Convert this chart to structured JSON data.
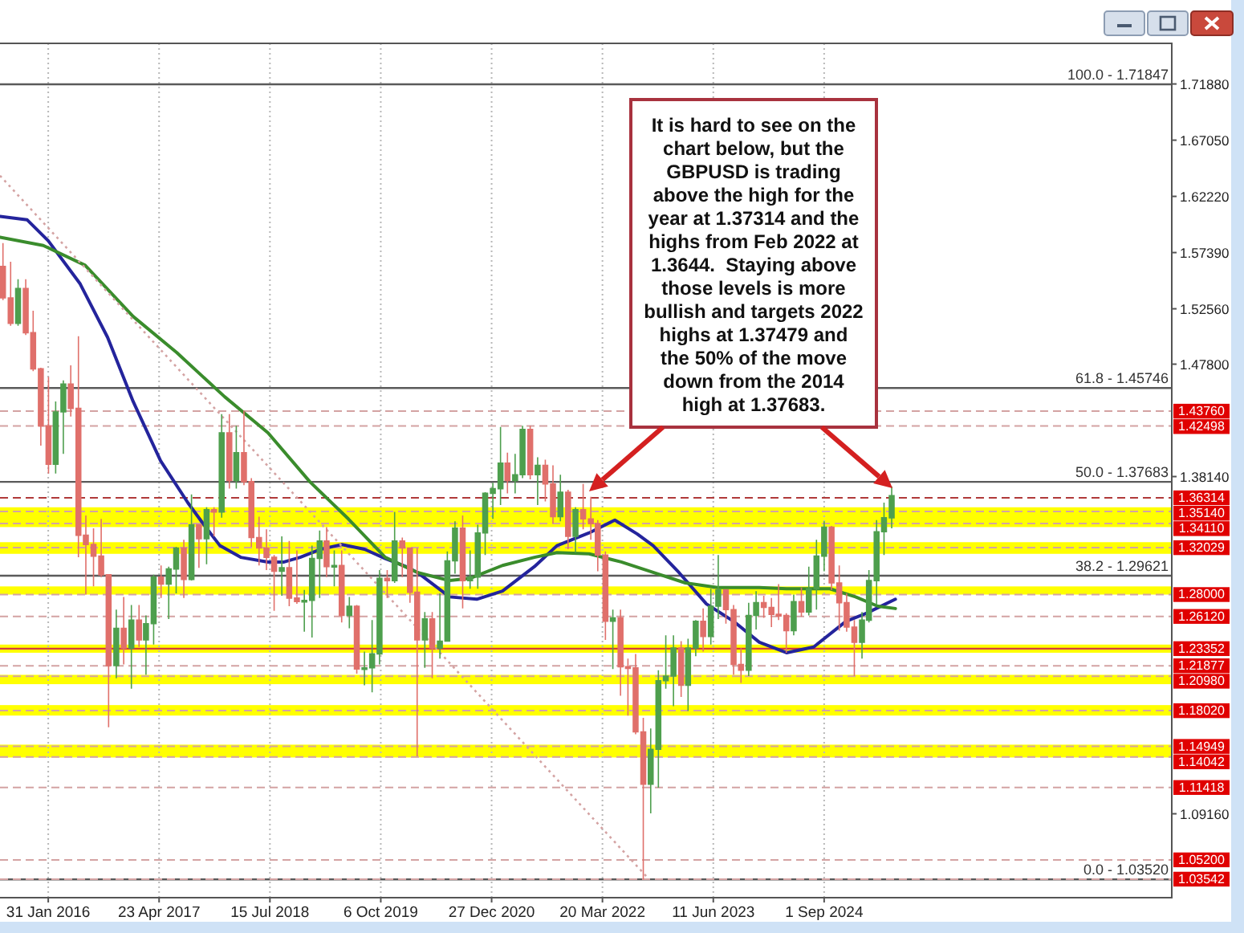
{
  "chart_data": {
    "type": "candlestick",
    "x": [
      "2015-08",
      "2015-09",
      "2015-10",
      "2015-11",
      "2015-12",
      "2016-01",
      "2016-02",
      "2016-03",
      "2016-04",
      "2016-05",
      "2016-06",
      "2016-07",
      "2016-08",
      "2016-09",
      "2016-10",
      "2016-11",
      "2016-12",
      "2017-01",
      "2017-02",
      "2017-03",
      "2017-04",
      "2017-05",
      "2017-06",
      "2017-07",
      "2017-08",
      "2017-09",
      "2017-10",
      "2017-11",
      "2017-12",
      "2018-01",
      "2018-02",
      "2018-03",
      "2018-04",
      "2018-05",
      "2018-06",
      "2018-07",
      "2018-08",
      "2018-09",
      "2018-10",
      "2018-11",
      "2018-12",
      "2019-01",
      "2019-02",
      "2019-03",
      "2019-04",
      "2019-05",
      "2019-06",
      "2019-07",
      "2019-08",
      "2019-09",
      "2019-10",
      "2019-11",
      "2019-12",
      "2020-01",
      "2020-02",
      "2020-03",
      "2020-04",
      "2020-05",
      "2020-06",
      "2020-07",
      "2020-08",
      "2020-09",
      "2020-10",
      "2020-11",
      "2020-12",
      "2021-01",
      "2021-02",
      "2021-03",
      "2021-04",
      "2021-05",
      "2021-06",
      "2021-07",
      "2021-08",
      "2021-09",
      "2021-10",
      "2021-11",
      "2021-12",
      "2022-01",
      "2022-02",
      "2022-03",
      "2022-04",
      "2022-05",
      "2022-06",
      "2022-07",
      "2022-08",
      "2022-09",
      "2022-10",
      "2022-11",
      "2022-12",
      "2023-01",
      "2023-02",
      "2023-03",
      "2023-04",
      "2023-05",
      "2023-06",
      "2023-07",
      "2023-08",
      "2023-09",
      "2023-10",
      "2023-11",
      "2023-12",
      "2024-01",
      "2024-02",
      "2024-03",
      "2024-04",
      "2024-05",
      "2024-06",
      "2024-07",
      "2024-08",
      "2024-09",
      "2024-10",
      "2024-11",
      "2024-12",
      "2025-01",
      "2025-02",
      "2025-03",
      "2025-04",
      "2025-05",
      "2025-06"
    ],
    "ohlc": [
      [
        1.562,
        1.582,
        1.533,
        1.535
      ],
      [
        1.535,
        1.566,
        1.511,
        1.513
      ],
      [
        1.513,
        1.551,
        1.511,
        1.543
      ],
      [
        1.543,
        1.551,
        1.503,
        1.505
      ],
      [
        1.505,
        1.524,
        1.472,
        1.474
      ],
      [
        1.474,
        1.475,
        1.408,
        1.425
      ],
      [
        1.425,
        1.467,
        1.384,
        1.392
      ],
      [
        1.392,
        1.446,
        1.384,
        1.437
      ],
      [
        1.437,
        1.464,
        1.401,
        1.461
      ],
      [
        1.461,
        1.477,
        1.433,
        1.44
      ],
      [
        1.44,
        1.502,
        1.312,
        1.331
      ],
      [
        1.331,
        1.348,
        1.28,
        1.323
      ],
      [
        1.323,
        1.337,
        1.287,
        1.313
      ],
      [
        1.313,
        1.345,
        1.295,
        1.297
      ],
      [
        1.297,
        1.297,
        1.166,
        1.219
      ],
      [
        1.219,
        1.267,
        1.208,
        1.251
      ],
      [
        1.251,
        1.278,
        1.22,
        1.234
      ],
      [
        1.234,
        1.271,
        1.199,
        1.258
      ],
      [
        1.258,
        1.271,
        1.235,
        1.241
      ],
      [
        1.241,
        1.262,
        1.211,
        1.255
      ],
      [
        1.255,
        1.297,
        1.237,
        1.295
      ],
      [
        1.295,
        1.305,
        1.277,
        1.289
      ],
      [
        1.289,
        1.304,
        1.259,
        1.302
      ],
      [
        1.302,
        1.321,
        1.281,
        1.32
      ],
      [
        1.32,
        1.327,
        1.277,
        1.293
      ],
      [
        1.293,
        1.366,
        1.292,
        1.34
      ],
      [
        1.34,
        1.34,
        1.303,
        1.328
      ],
      [
        1.328,
        1.355,
        1.306,
        1.353
      ],
      [
        1.353,
        1.355,
        1.33,
        1.351
      ],
      [
        1.351,
        1.435,
        1.346,
        1.419
      ],
      [
        1.419,
        1.435,
        1.371,
        1.378
      ],
      [
        1.378,
        1.425,
        1.371,
        1.402
      ],
      [
        1.402,
        1.438,
        1.374,
        1.377
      ],
      [
        1.377,
        1.38,
        1.321,
        1.329
      ],
      [
        1.329,
        1.347,
        1.305,
        1.32
      ],
      [
        1.32,
        1.336,
        1.301,
        1.312
      ],
      [
        1.312,
        1.314,
        1.266,
        1.3
      ],
      [
        1.3,
        1.33,
        1.279,
        1.303
      ],
      [
        1.303,
        1.326,
        1.27,
        1.277
      ],
      [
        1.277,
        1.318,
        1.272,
        1.274
      ],
      [
        1.274,
        1.284,
        1.248,
        1.275
      ],
      [
        1.275,
        1.322,
        1.243,
        1.311
      ],
      [
        1.311,
        1.335,
        1.277,
        1.326
      ],
      [
        1.326,
        1.338,
        1.295,
        1.304
      ],
      [
        1.304,
        1.318,
        1.287,
        1.305
      ],
      [
        1.305,
        1.318,
        1.256,
        1.262
      ],
      [
        1.262,
        1.278,
        1.251,
        1.27
      ],
      [
        1.27,
        1.271,
        1.212,
        1.216
      ],
      [
        1.216,
        1.231,
        1.202,
        1.217
      ],
      [
        1.217,
        1.258,
        1.196,
        1.229
      ],
      [
        1.229,
        1.301,
        1.22,
        1.294
      ],
      [
        1.294,
        1.301,
        1.277,
        1.292
      ],
      [
        1.292,
        1.351,
        1.29,
        1.326
      ],
      [
        1.326,
        1.329,
        1.295,
        1.32
      ],
      [
        1.32,
        1.32,
        1.273,
        1.282
      ],
      [
        1.282,
        1.32,
        1.141,
        1.241
      ],
      [
        1.241,
        1.265,
        1.217,
        1.259
      ],
      [
        1.259,
        1.265,
        1.208,
        1.234
      ],
      [
        1.234,
        1.281,
        1.225,
        1.24
      ],
      [
        1.24,
        1.317,
        1.24,
        1.309
      ],
      [
        1.309,
        1.343,
        1.298,
        1.337
      ],
      [
        1.337,
        1.348,
        1.268,
        1.292
      ],
      [
        1.292,
        1.318,
        1.285,
        1.295
      ],
      [
        1.295,
        1.34,
        1.285,
        1.333
      ],
      [
        1.333,
        1.368,
        1.314,
        1.367
      ],
      [
        1.367,
        1.376,
        1.345,
        1.371
      ],
      [
        1.371,
        1.424,
        1.357,
        1.393
      ],
      [
        1.393,
        1.402,
        1.367,
        1.378
      ],
      [
        1.378,
        1.401,
        1.367,
        1.383
      ],
      [
        1.383,
        1.425,
        1.38,
        1.422
      ],
      [
        1.422,
        1.425,
        1.379,
        1.383
      ],
      [
        1.383,
        1.398,
        1.357,
        1.391
      ],
      [
        1.391,
        1.396,
        1.36,
        1.375
      ],
      [
        1.375,
        1.391,
        1.341,
        1.347
      ],
      [
        1.347,
        1.383,
        1.343,
        1.368
      ],
      [
        1.368,
        1.37,
        1.319,
        1.33
      ],
      [
        1.33,
        1.355,
        1.316,
        1.353
      ],
      [
        1.353,
        1.375,
        1.336,
        1.345
      ],
      [
        1.345,
        1.364,
        1.327,
        1.341
      ],
      [
        1.341,
        1.344,
        1.3,
        1.314
      ],
      [
        1.314,
        1.317,
        1.241,
        1.257
      ],
      [
        1.257,
        1.267,
        1.216,
        1.26
      ],
      [
        1.26,
        1.267,
        1.193,
        1.218
      ],
      [
        1.218,
        1.225,
        1.176,
        1.217
      ],
      [
        1.217,
        1.229,
        1.16,
        1.162
      ],
      [
        1.162,
        1.174,
        1.035,
        1.117
      ],
      [
        1.117,
        1.165,
        1.092,
        1.147
      ],
      [
        1.147,
        1.215,
        1.114,
        1.206
      ],
      [
        1.206,
        1.245,
        1.199,
        1.21
      ],
      [
        1.21,
        1.245,
        1.184,
        1.234
      ],
      [
        1.234,
        1.24,
        1.192,
        1.202
      ],
      [
        1.202,
        1.242,
        1.18,
        1.234
      ],
      [
        1.234,
        1.258,
        1.227,
        1.257
      ],
      [
        1.257,
        1.268,
        1.231,
        1.244
      ],
      [
        1.244,
        1.285,
        1.237,
        1.27
      ],
      [
        1.27,
        1.314,
        1.259,
        1.284
      ],
      [
        1.284,
        1.284,
        1.255,
        1.267
      ],
      [
        1.267,
        1.271,
        1.211,
        1.22
      ],
      [
        1.22,
        1.234,
        1.204,
        1.215
      ],
      [
        1.215,
        1.273,
        1.21,
        1.262
      ],
      [
        1.262,
        1.283,
        1.25,
        1.273
      ],
      [
        1.273,
        1.279,
        1.26,
        1.269
      ],
      [
        1.269,
        1.277,
        1.252,
        1.263
      ],
      [
        1.263,
        1.289,
        1.258,
        1.262
      ],
      [
        1.262,
        1.264,
        1.23,
        1.249
      ],
      [
        1.249,
        1.28,
        1.245,
        1.274
      ],
      [
        1.274,
        1.286,
        1.261,
        1.265
      ],
      [
        1.265,
        1.304,
        1.262,
        1.285
      ],
      [
        1.285,
        1.327,
        1.267,
        1.313
      ],
      [
        1.313,
        1.343,
        1.3,
        1.338
      ],
      [
        1.338,
        1.339,
        1.284,
        1.29
      ],
      [
        1.29,
        1.305,
        1.249,
        1.273
      ],
      [
        1.273,
        1.281,
        1.248,
        1.252
      ],
      [
        1.252,
        1.258,
        1.21,
        1.239
      ],
      [
        1.239,
        1.265,
        1.225,
        1.258
      ],
      [
        1.258,
        1.301,
        1.256,
        1.292
      ],
      [
        1.292,
        1.344,
        1.271,
        1.334
      ],
      [
        1.334,
        1.359,
        1.314,
        1.346
      ],
      [
        1.346,
        1.373,
        1.337,
        1.365
      ]
    ],
    "colors": [
      "#e0706b",
      "#e0706b",
      "#4e9f4e",
      "#e0706b",
      "#e0706b",
      "#e0706b",
      "#e0706b",
      "#4e9f4e",
      "#4e9f4e",
      "#e0706b",
      "#e0706b",
      "#e0706b",
      "#e0706b",
      "#e0706b",
      "#e0706b",
      "#4e9f4e",
      "#e0706b",
      "#4e9f4e",
      "#e0706b",
      "#4e9f4e",
      "#4e9f4e",
      "#e0706b",
      "#4e9f4e",
      "#4e9f4e",
      "#e0706b",
      "#4e9f4e",
      "#e0706b",
      "#4e9f4e",
      "#e0706b",
      "#4e9f4e",
      "#e0706b",
      "#4e9f4e",
      "#e0706b",
      "#e0706b",
      "#e0706b",
      "#e0706b",
      "#e0706b",
      "#4e9f4e",
      "#e0706b",
      "#e0706b",
      "#4e9f4e",
      "#4e9f4e",
      "#4e9f4e",
      "#e0706b",
      "#4e9f4e",
      "#e0706b",
      "#4e9f4e",
      "#e0706b",
      "#4e9f4e",
      "#4e9f4e",
      "#4e9f4e",
      "#e0706b",
      "#4e9f4e",
      "#e0706b",
      "#e0706b",
      "#e0706b",
      "#4e9f4e",
      "#e0706b",
      "#4e9f4e",
      "#4e9f4e",
      "#4e9f4e",
      "#e0706b",
      "#4e9f4e",
      "#4e9f4e",
      "#4e9f4e",
      "#4e9f4e",
      "#4e9f4e",
      "#e0706b",
      "#4e9f4e",
      "#4e9f4e",
      "#e0706b",
      "#4e9f4e",
      "#e0706b",
      "#e0706b",
      "#4e9f4e",
      "#e0706b",
      "#4e9f4e",
      "#e0706b",
      "#e0706b",
      "#e0706b",
      "#e0706b",
      "#4e9f4e",
      "#e0706b",
      "#e0706b",
      "#e0706b",
      "#e0706b",
      "#4e9f4e",
      "#4e9f4e",
      "#4e9f4e",
      "#4e9f4e",
      "#e0706b",
      "#4e9f4e",
      "#4e9f4e",
      "#e0706b",
      "#4e9f4e",
      "#4e9f4e",
      "#e0706b",
      "#e0706b",
      "#e0706b",
      "#4e9f4e",
      "#4e9f4e",
      "#e0706b",
      "#e0706b",
      "#e0706b",
      "#e0706b",
      "#4e9f4e",
      "#e0706b",
      "#4e9f4e",
      "#4e9f4e",
      "#4e9f4e",
      "#e0706b",
      "#e0706b",
      "#e0706b",
      "#e0706b",
      "#4e9f4e",
      "#4e9f4e",
      "#4e9f4e",
      "#4e9f4e",
      "#4e9f4e"
    ],
    "series": [
      {
        "type": "line",
        "color": "#24249c",
        "x": [
          "2015-07-20",
          "2015-11-07",
          "2016-01-31",
          "2016-06-08",
          "2016-09-27",
          "2017-01-08",
          "2017-04-29",
          "2017-08-17",
          "2017-10-21",
          "2017-12-25",
          "2018-03-19",
          "2018-07-07",
          "2018-09-10",
          "2018-11-14",
          "2019-02-07",
          "2019-05-02",
          "2019-08-01",
          "2019-10-24",
          "2020-01-16",
          "2020-03-02",
          "2020-07-10",
          "2020-10-28",
          "2021-02-09",
          "2021-06-18",
          "2021-09-17",
          "2022-01-25",
          "2022-05-09",
          "2022-08-08",
          "2022-10-11",
          "2023-01-23",
          "2023-05-14",
          "2023-09-01",
          "2023-12-14",
          "2024-04-02",
          "2024-07-21",
          "2024-11-28",
          "2025-02-20",
          "2025-06-16"
        ],
        "values": [
          1.605,
          1.602,
          1.584,
          1.547,
          1.501,
          1.446,
          1.395,
          1.359,
          1.34,
          1.322,
          1.312,
          1.308,
          1.308,
          1.312,
          1.319,
          1.323,
          1.319,
          1.311,
          1.304,
          1.299,
          1.278,
          1.276,
          1.283,
          1.304,
          1.322,
          1.333,
          1.344,
          1.332,
          1.322,
          1.299,
          1.272,
          1.257,
          1.239,
          1.23,
          1.235,
          1.257,
          1.264,
          1.276
        ]
      },
      {
        "type": "line",
        "color": "#3a8c2c",
        "x": [
          "2015-07-20",
          "2016-01-11",
          "2016-06-28",
          "2017-01-08",
          "2017-07-03",
          "2018-01-13",
          "2018-07-07",
          "2018-12-23",
          "2019-05-28",
          "2019-10-24",
          "2020-03-02",
          "2020-07-10",
          "2020-10-02",
          "2021-02-09",
          "2021-06-18",
          "2021-09-17",
          "2022-01-25",
          "2022-06-04",
          "2022-10-11",
          "2023-02-18",
          "2023-06-28",
          "2023-12-14",
          "2024-04-02",
          "2024-09-24",
          "2025-01-06",
          "2025-04-06",
          "2025-06-16"
        ],
        "values": [
          1.587,
          1.58,
          1.563,
          1.519,
          1.488,
          1.45,
          1.419,
          1.377,
          1.345,
          1.312,
          1.299,
          1.292,
          1.294,
          1.305,
          1.312,
          1.316,
          1.315,
          1.308,
          1.299,
          1.29,
          1.286,
          1.286,
          1.285,
          1.285,
          1.278,
          1.27,
          1.268
        ]
      },
      {
        "type": "line",
        "color": "#d4a3a3",
        "line_style": "dotted",
        "x": [
          "2015-07-20",
          "2022-09-26"
        ],
        "values": [
          1.64,
          1.035
        ]
      }
    ],
    "ref_lines": [
      {
        "axis": "y",
        "value": 1.71847,
        "label": null,
        "color": "#5a5a5a",
        "line_style": "solid"
      },
      {
        "axis": "y",
        "value": 1.45746,
        "label": null,
        "color": "#5a5a5a",
        "line_style": "solid"
      },
      {
        "axis": "y",
        "value": 1.37683,
        "label": null,
        "color": "#5a5a5a",
        "line_style": "solid"
      },
      {
        "axis": "y",
        "value": 1.29621,
        "label": null,
        "color": "#5a5a5a",
        "line_style": "solid"
      },
      {
        "axis": "y",
        "value": 1.0352,
        "label": null,
        "color": "#5a5a5a",
        "line_style": "solid"
      },
      {
        "axis": "y",
        "value": 1.4376,
        "label": "1.43760",
        "color": "#d4a3a3",
        "line_style": "dashed"
      },
      {
        "axis": "y",
        "value": 1.42498,
        "label": "1.42498",
        "color": "#d4a3a3",
        "line_style": "dashed"
      },
      {
        "axis": "y",
        "value": 1.36314,
        "label": "1.36314",
        "color": "#b03a3a",
        "line_style": "dashed"
      },
      {
        "axis": "y",
        "value": 1.3514,
        "label": "1.35140",
        "color": "#d4a3a3",
        "line_style": "dashed"
      },
      {
        "axis": "y",
        "value": 1.3411,
        "label": "1.34110",
        "color": "#d4a3a3",
        "line_style": "dashed"
      },
      {
        "axis": "y",
        "value": 1.32029,
        "label": "1.32029",
        "color": "#d4a3a3",
        "line_style": "dashed"
      },
      {
        "axis": "y",
        "value": 1.28,
        "label": "1.28000",
        "color": "#d4a3a3",
        "line_style": "dashed"
      },
      {
        "axis": "y",
        "value": 1.2612,
        "label": "1.26120",
        "color": "#d4a3a3",
        "line_style": "dashed"
      },
      {
        "axis": "y",
        "value": 1.23352,
        "label": "1.23352",
        "color": "#d43c3c",
        "line_style": "solid"
      },
      {
        "axis": "y",
        "value": 1.21877,
        "label": "1.21877",
        "color": "#d4a3a3",
        "line_style": "dashed"
      },
      {
        "axis": "y",
        "value": 1.2098,
        "label": "1.20980",
        "color": "#d4a3a3",
        "line_style": "dashed"
      },
      {
        "axis": "y",
        "value": 1.1802,
        "label": "1.18020",
        "color": "#d4a3a3",
        "line_style": "dashed"
      },
      {
        "axis": "y",
        "value": 1.14949,
        "label": "1.14949",
        "color": "#d4a3a3",
        "line_style": "dashed"
      },
      {
        "axis": "y",
        "value": 1.14042,
        "label": "1.14042",
        "color": "#d4a3a3",
        "line_style": "dashed"
      },
      {
        "axis": "y",
        "value": 1.11418,
        "label": "1.11418",
        "color": "#d4a3a3",
        "line_style": "dashed"
      },
      {
        "axis": "y",
        "value": 1.052,
        "label": "1.05200",
        "color": "#d4a3a3",
        "line_style": "dashed"
      },
      {
        "axis": "y",
        "value": 1.03542,
        "label": "1.03542",
        "color": "#d4a3a3",
        "line_style": "dashed"
      }
    ],
    "bands": [
      {
        "axis": "y",
        "from": 1.338,
        "to": 1.355,
        "color": "#ffff00"
      },
      {
        "axis": "y",
        "from": 1.315,
        "to": 1.325,
        "color": "#ffff00"
      },
      {
        "axis": "y",
        "from": 1.28,
        "to": 1.287,
        "color": "#ffff00"
      },
      {
        "axis": "y",
        "from": 1.23,
        "to": 1.237,
        "color": "#ffff00"
      },
      {
        "axis": "y",
        "from": 1.203,
        "to": 1.211,
        "color": "#ffff00"
      },
      {
        "axis": "y",
        "from": 1.176,
        "to": 1.185,
        "color": "#ffff00"
      },
      {
        "axis": "y",
        "from": 1.14,
        "to": 1.151,
        "color": "#ffff00"
      }
    ],
    "annotations": [
      "It is hard to see on the\nchart below, but the\nGBPUSD is trading\nabove the high for the\nyear at 1.37314 and the\nhighs from Feb 2022 at\n1.3644.  Staying above\nthose levels is more\nbullish and targets 2022\nhighs at 1.37479 and\nthe 50% of the move\ndown from the 2014\nhigh at 1.37683.",
      {
        "text": "100.0 - 1.71847",
        "x": "2028-07-07",
        "y": 1.71847
      },
      {
        "text": "61.8 - 1.45746",
        "x": "2028-07-07",
        "y": 1.45746
      },
      {
        "text": "50.0 - 1.37683",
        "x": "2028-07-07",
        "y": 1.37683
      },
      {
        "text": "38.2 - 1.29621",
        "x": "2028-07-07",
        "y": 1.29621
      },
      {
        "text": "0.0 - 1.03520",
        "x": "2028-07-07",
        "y": 1.0352
      }
    ],
    "xlim": [
      "2015-07-20",
      "2028-07-07"
    ],
    "xticks": [
      {
        "value": "2016-01-31",
        "label": "31 Jan 2016"
      },
      {
        "value": "2017-04-23",
        "label": "23 Apr 2017"
      },
      {
        "value": "2018-07-15",
        "label": "15 Jul 2018"
      },
      {
        "value": "2019-10-06",
        "label": "6 Oct 2019"
      },
      {
        "value": "2020-12-27",
        "label": "27 Dec 2020"
      },
      {
        "value": "2022-03-20",
        "label": "20 Mar 2022"
      },
      {
        "value": "2023-06-11",
        "label": "11 Jun 2023"
      },
      {
        "value": "2024-09-01",
        "label": "1 Sep 2024"
      }
    ],
    "ylim": [
      1.0195,
      1.7537
    ],
    "yticks": [
      {
        "value": 1.0916,
        "label": "1.09160"
      },
      {
        "value": 1.3814,
        "label": "1.38140"
      },
      {
        "value": 1.478,
        "label": "1.47800"
      },
      {
        "value": 1.5256,
        "label": "1.52560"
      },
      {
        "value": 1.5739,
        "label": "1.57390"
      },
      {
        "value": 1.6222,
        "label": "1.62220"
      },
      {
        "value": 1.6705,
        "label": "1.67050"
      },
      {
        "value": 1.7188,
        "label": "1.71880"
      }
    ],
    "grid": "x"
  }
}
